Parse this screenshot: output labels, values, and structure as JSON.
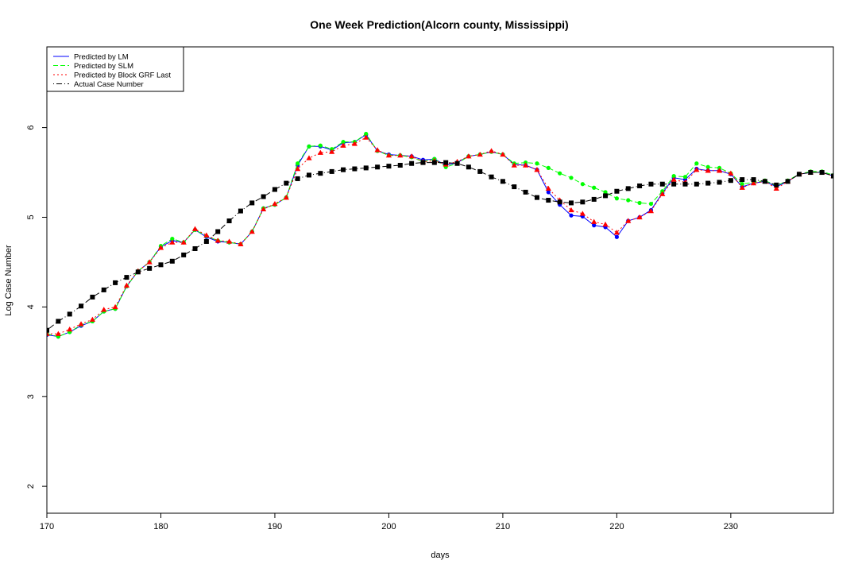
{
  "chart_data": {
    "type": "line",
    "title": "One Week Prediction(Alcorn county, Mississippi)",
    "xlabel": "days",
    "ylabel": "Log Case Number",
    "xlim": [
      170,
      239
    ],
    "ylim": [
      1.7,
      6.9
    ],
    "xticks": [
      170,
      180,
      190,
      200,
      210,
      220,
      230
    ],
    "yticks": [
      2,
      3,
      4,
      5,
      6
    ],
    "legend_position": "top-left",
    "x": [
      170,
      171,
      172,
      173,
      174,
      175,
      176,
      177,
      178,
      179,
      180,
      181,
      182,
      183,
      184,
      185,
      186,
      187,
      188,
      189,
      190,
      191,
      192,
      193,
      194,
      195,
      196,
      197,
      198,
      199,
      200,
      201,
      202,
      203,
      204,
      205,
      206,
      207,
      208,
      209,
      210,
      211,
      212,
      213,
      214,
      215,
      216,
      217,
      218,
      219,
      220,
      221,
      222,
      223,
      224,
      225,
      226,
      227,
      228,
      229,
      230,
      231,
      232,
      233,
      234,
      235,
      236,
      237,
      238,
      239
    ],
    "series": [
      {
        "name": "Predicted by LM",
        "color": "#0000ff",
        "marker": "circle",
        "line_style": "solid",
        "values": [
          3.69,
          3.67,
          3.72,
          3.79,
          3.84,
          3.95,
          3.98,
          4.23,
          4.4,
          4.5,
          4.67,
          4.74,
          4.72,
          4.86,
          4.78,
          4.73,
          4.72,
          4.7,
          4.84,
          5.1,
          5.14,
          5.22,
          5.58,
          5.79,
          5.79,
          5.75,
          5.83,
          5.84,
          5.92,
          5.74,
          5.7,
          5.69,
          5.68,
          5.64,
          5.65,
          5.58,
          5.61,
          5.68,
          5.7,
          5.73,
          5.7,
          5.59,
          5.58,
          5.53,
          5.28,
          5.14,
          5.02,
          5.01,
          4.91,
          4.89,
          4.78,
          4.96,
          5.0,
          5.08,
          5.27,
          5.44,
          5.42,
          5.54,
          5.52,
          5.52,
          5.48,
          5.34,
          5.38,
          5.4,
          5.34,
          5.4,
          5.48,
          5.5,
          5.5,
          5.46
        ]
      },
      {
        "name": "Predicted by SLM",
        "color": "#00ff00",
        "marker": "circle",
        "line_style": "dashed",
        "values": [
          3.7,
          3.67,
          3.72,
          3.8,
          3.84,
          3.95,
          3.98,
          4.23,
          4.4,
          4.5,
          4.68,
          4.76,
          4.72,
          4.86,
          4.79,
          4.74,
          4.72,
          4.7,
          4.84,
          5.1,
          5.14,
          5.22,
          5.6,
          5.79,
          5.8,
          5.76,
          5.84,
          5.84,
          5.93,
          5.74,
          5.69,
          5.69,
          5.67,
          5.62,
          5.65,
          5.56,
          5.6,
          5.68,
          5.7,
          5.73,
          5.7,
          5.6,
          5.61,
          5.6,
          5.55,
          5.49,
          5.44,
          5.37,
          5.33,
          5.28,
          5.21,
          5.19,
          5.16,
          5.15,
          5.29,
          5.46,
          5.45,
          5.6,
          5.56,
          5.55,
          5.49,
          5.37,
          5.39,
          5.41,
          5.35,
          5.41,
          5.48,
          5.51,
          5.51,
          5.47
        ]
      },
      {
        "name": "Predicted by Block GRF Last",
        "color": "#ff0000",
        "marker": "triangle",
        "line_style": "dotted",
        "values": [
          3.7,
          3.7,
          3.75,
          3.81,
          3.86,
          3.97,
          4.0,
          4.24,
          4.4,
          4.5,
          4.66,
          4.72,
          4.72,
          4.87,
          4.8,
          4.74,
          4.73,
          4.7,
          4.84,
          5.09,
          5.15,
          5.22,
          5.54,
          5.66,
          5.72,
          5.73,
          5.8,
          5.82,
          5.89,
          5.75,
          5.69,
          5.69,
          5.68,
          5.62,
          5.63,
          5.59,
          5.62,
          5.68,
          5.7,
          5.74,
          5.7,
          5.58,
          5.58,
          5.53,
          5.32,
          5.19,
          5.08,
          5.04,
          4.95,
          4.92,
          4.83,
          4.96,
          5.0,
          5.07,
          5.26,
          5.42,
          5.39,
          5.53,
          5.52,
          5.52,
          5.49,
          5.33,
          5.38,
          5.4,
          5.32,
          5.4,
          5.48,
          5.5,
          5.5,
          5.46
        ]
      },
      {
        "name": "Actual Case Number",
        "color": "#000000",
        "marker": "square",
        "line_style": "dotdash",
        "values": [
          3.74,
          3.84,
          3.92,
          4.01,
          4.11,
          4.19,
          4.27,
          4.33,
          4.39,
          4.43,
          4.47,
          4.51,
          4.58,
          4.65,
          4.73,
          4.84,
          4.96,
          5.07,
          5.16,
          5.23,
          5.31,
          5.38,
          5.43,
          5.47,
          5.49,
          5.51,
          5.53,
          5.54,
          5.55,
          5.56,
          5.57,
          5.58,
          5.6,
          5.61,
          5.61,
          5.61,
          5.6,
          5.56,
          5.51,
          5.45,
          5.4,
          5.34,
          5.28,
          5.22,
          5.19,
          5.17,
          5.16,
          5.17,
          5.2,
          5.24,
          5.29,
          5.32,
          5.35,
          5.37,
          5.37,
          5.37,
          5.37,
          5.37,
          5.38,
          5.39,
          5.41,
          5.42,
          5.42,
          5.4,
          5.36,
          5.4,
          5.48,
          5.5,
          5.5,
          5.46
        ]
      }
    ]
  }
}
